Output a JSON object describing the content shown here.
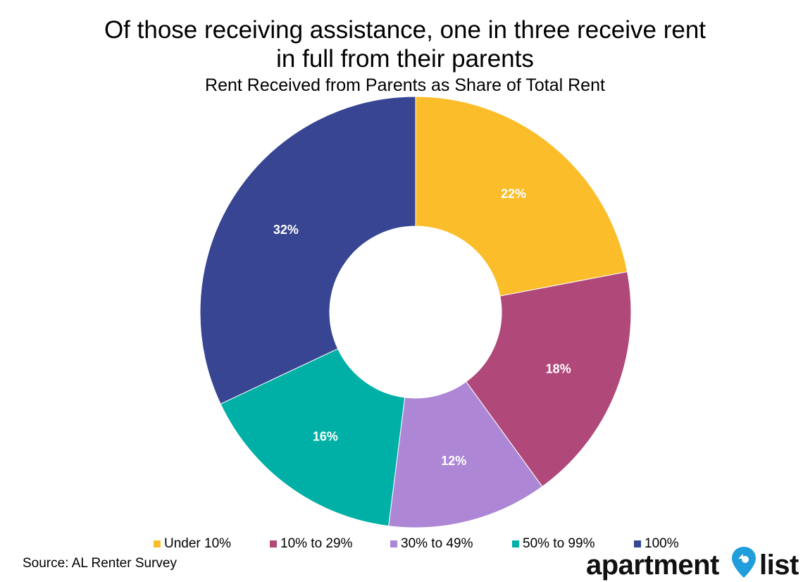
{
  "title_line1": "Of those receiving assistance, one in three receive rent",
  "title_line2": "in full from their parents",
  "subtitle": "Rent Received from Parents as Share of Total Rent",
  "source": "Source: AL Renter Survey",
  "logo": {
    "text_left": "apartment",
    "text_right": "list",
    "icon": "map-pin-icon",
    "pin_color": "#1F9EDB"
  },
  "chart_data": {
    "type": "pie",
    "donut": true,
    "title": "Of those receiving assistance, one in three receive rent in full from their parents",
    "subtitle": "Rent Received from Parents as Share of Total Rent",
    "legend_position": "bottom",
    "start_angle": "12 o'clock",
    "direction": "clockwise",
    "slices": [
      {
        "name": "Under 10%",
        "value": 22,
        "label": "22%",
        "color": "#FBBD29"
      },
      {
        "name": "10% to 29%",
        "value": 18,
        "label": "18%",
        "color": "#B0497A"
      },
      {
        "name": "30% to 49%",
        "value": 12,
        "label": "12%",
        "color": "#AD87D6"
      },
      {
        "name": "50% to 99%",
        "value": 16,
        "label": "16%",
        "color": "#00B0A6"
      },
      {
        "name": "100%",
        "value": 32,
        "label": "32%",
        "color": "#374592"
      }
    ]
  }
}
